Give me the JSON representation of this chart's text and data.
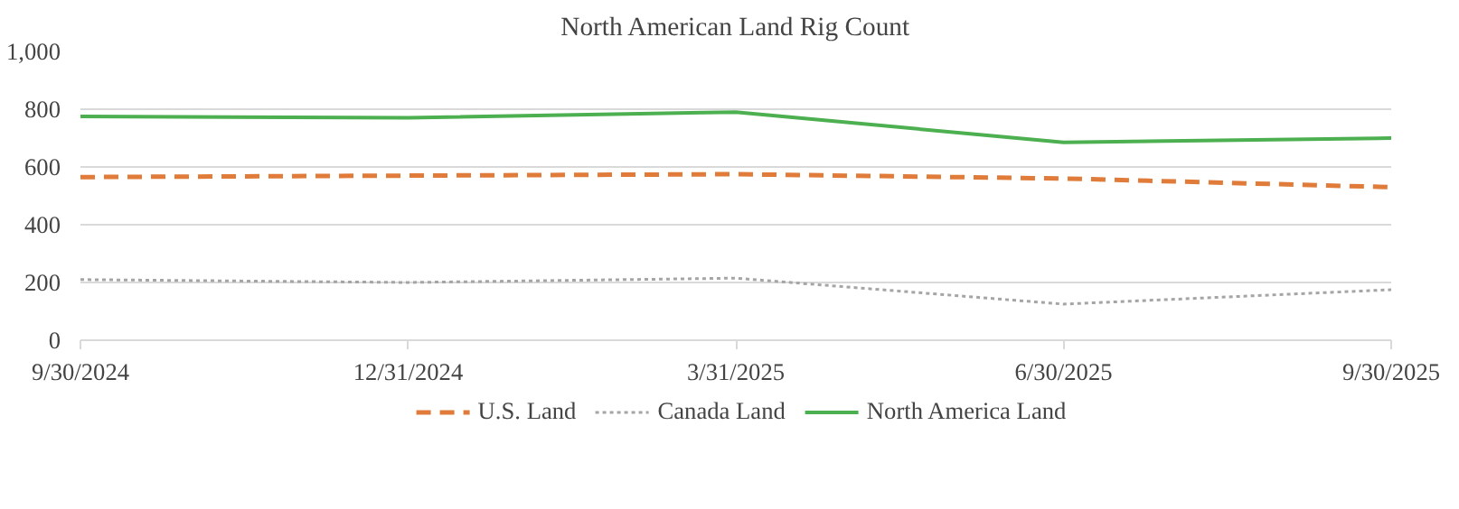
{
  "chart_data": {
    "type": "line",
    "title": "North American Land Rig Count",
    "categories": [
      "9/30/2024",
      "12/31/2024",
      "3/31/2025",
      "6/30/2025",
      "9/30/2025"
    ],
    "series": [
      {
        "name": "U.S. Land",
        "color": "#e07b39",
        "line_style": "dashed",
        "values": [
          565,
          570,
          575,
          560,
          530
        ]
      },
      {
        "name": "Canada Land",
        "color": "#a5a5a5",
        "line_style": "dotted",
        "values": [
          210,
          200,
          215,
          125,
          175
        ]
      },
      {
        "name": "North America Land",
        "color": "#4caf50",
        "line_style": "solid",
        "values": [
          775,
          770,
          790,
          685,
          700
        ]
      }
    ],
    "ylim": [
      0,
      1000
    ],
    "yticks": [
      0,
      {
        "value": 200,
        "label": "200"
      },
      400,
      600,
      800,
      {
        "value": 1000,
        "label": "1,000"
      }
    ],
    "grid": "y",
    "legend": "bottom",
    "marker": "none"
  }
}
